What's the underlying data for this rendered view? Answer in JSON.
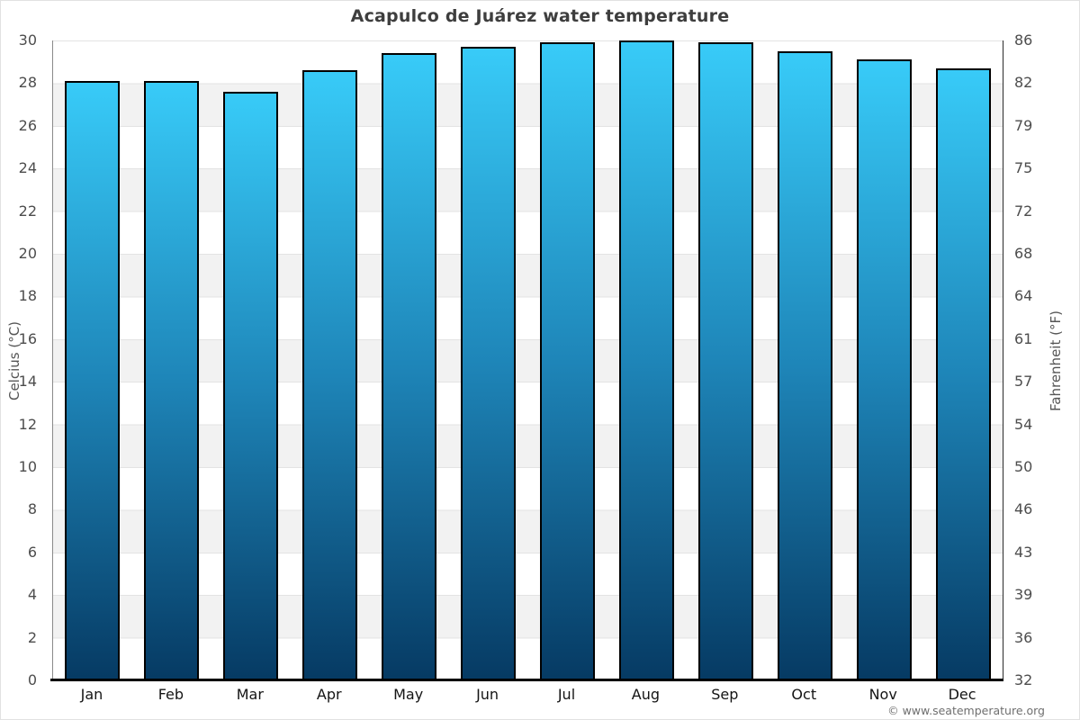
{
  "title": "Acapulco de Juárez water temperature",
  "attribution": "© www.seatemperature.org",
  "axes": {
    "left_label": "Celcius (°C)",
    "right_label": "Fahrenheit (°F)",
    "left_ticks": [
      30,
      28,
      26,
      24,
      22,
      20,
      18,
      16,
      14,
      12,
      10,
      8,
      6,
      4,
      2,
      0
    ],
    "right_ticks": [
      86,
      82,
      79,
      75,
      72,
      68,
      64,
      61,
      57,
      54,
      50,
      46,
      43,
      39,
      36,
      32
    ]
  },
  "chart_data": {
    "type": "bar",
    "title": "Acapulco de Juárez water temperature",
    "categories": [
      "Jan",
      "Feb",
      "Mar",
      "Apr",
      "May",
      "Jun",
      "Jul",
      "Aug",
      "Sep",
      "Oct",
      "Nov",
      "Dec"
    ],
    "values": [
      28.1,
      28.1,
      27.6,
      28.6,
      29.4,
      29.7,
      29.9,
      30.0,
      29.9,
      29.5,
      29.1,
      28.7
    ],
    "unit": "°C",
    "xlabel": "",
    "ylabel": "Celcius (°C)",
    "ylabel_right": "Fahrenheit (°F)",
    "ylim": [
      0,
      30
    ],
    "ytick_step": 2,
    "grid": "alternating-bands",
    "legend": "none",
    "colors": {
      "bar_top": "#38cbf8",
      "bar_mid": "#1e85b8",
      "bar_bottom": "#063a63",
      "bar_border": "#000000",
      "band_alt": "#f2f2f2",
      "grid_line": "#e3e3e3",
      "title_text": "#3e3e3e",
      "tick_text": "#4d4d4d"
    }
  }
}
